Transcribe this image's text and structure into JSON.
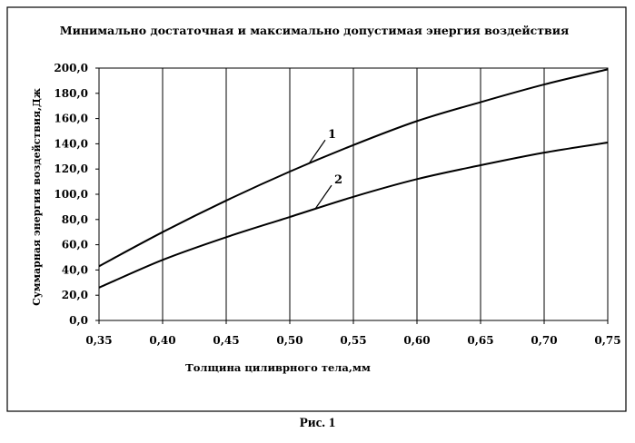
{
  "chart_data": {
    "type": "line",
    "title": "Минимально достаточная и максимально допустимая энергия воздействия",
    "xlabel": "Толщина циливрного тела,мм",
    "ylabel": "Суммарная энергия воздействия,Дж",
    "xlim": [
      0.35,
      0.75
    ],
    "ylim": [
      0,
      200
    ],
    "x_ticks": [
      "0,35",
      "0,40",
      "0,45",
      "0,50",
      "0,55",
      "0,60",
      "0,65",
      "0,70",
      "0,75"
    ],
    "y_ticks": [
      "0,0",
      "20,0",
      "40,0",
      "60,0",
      "80,0",
      "100,0",
      "120,0",
      "140,0",
      "160,0",
      "180,0",
      "200,0"
    ],
    "grid": "vertical",
    "series": [
      {
        "name": "1",
        "x": [
          0.35,
          0.4,
          0.45,
          0.5,
          0.55,
          0.6,
          0.65,
          0.7,
          0.75
        ],
        "values": [
          43,
          70,
          95,
          118,
          139,
          158,
          173,
          187,
          199
        ]
      },
      {
        "name": "2",
        "x": [
          0.35,
          0.4,
          0.45,
          0.5,
          0.55,
          0.6,
          0.65,
          0.7,
          0.75
        ],
        "values": [
          26,
          48,
          66,
          82,
          98,
          112,
          123,
          133,
          141
        ]
      }
    ]
  },
  "caption": "Рис. 1"
}
